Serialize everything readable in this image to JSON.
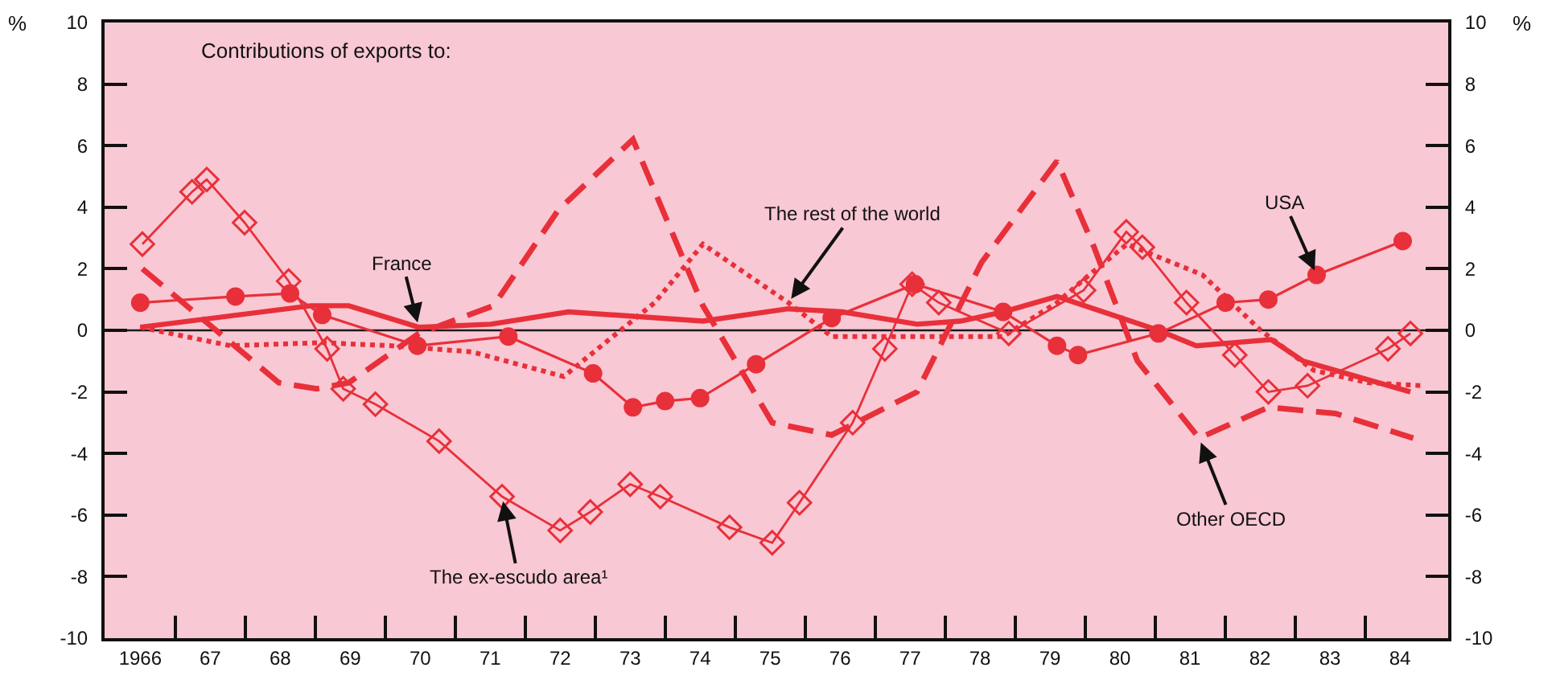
{
  "chart_data": {
    "type": "line",
    "annotations": [
      "Contributions of exports to:"
    ],
    "ylabel": "%",
    "y2label": "%",
    "xlim": [
      1965.49,
      1984.69
    ],
    "ylim": [
      -10,
      10
    ],
    "y2lim": [
      -10,
      10
    ],
    "xticks": [
      {
        "value": 1966,
        "label": "1966"
      },
      {
        "value": 1967,
        "label": "67"
      },
      {
        "value": 1968,
        "label": "68"
      },
      {
        "value": 1969,
        "label": "69"
      },
      {
        "value": 1970,
        "label": "70"
      },
      {
        "value": 1971,
        "label": "71"
      },
      {
        "value": 1972,
        "label": "72"
      },
      {
        "value": 1973,
        "label": "73"
      },
      {
        "value": 1974,
        "label": "74"
      },
      {
        "value": 1975,
        "label": "75"
      },
      {
        "value": 1976,
        "label": "76"
      },
      {
        "value": 1977,
        "label": "77"
      },
      {
        "value": 1978,
        "label": "78"
      },
      {
        "value": 1979,
        "label": "79"
      },
      {
        "value": 1980,
        "label": "80"
      },
      {
        "value": 1981,
        "label": "81"
      },
      {
        "value": 1982,
        "label": "82"
      },
      {
        "value": 1983,
        "label": "83"
      },
      {
        "value": 1984,
        "label": "84"
      },
      {
        "value": 1966.5,
        "label": null
      },
      {
        "value": 1967.5,
        "label": null
      },
      {
        "value": 1968.5,
        "label": null
      },
      {
        "value": 1969.5,
        "label": null
      },
      {
        "value": 1970.5,
        "label": null
      },
      {
        "value": 1971.5,
        "label": null
      },
      {
        "value": 1972.5,
        "label": null
      },
      {
        "value": 1973.5,
        "label": null
      },
      {
        "value": 1974.5,
        "label": null
      },
      {
        "value": 1975.5,
        "label": null
      },
      {
        "value": 1976.5,
        "label": null
      },
      {
        "value": 1977.5,
        "label": null
      },
      {
        "value": 1978.5,
        "label": null
      },
      {
        "value": 1979.5,
        "label": null
      },
      {
        "value": 1980.5,
        "label": null
      },
      {
        "value": 1981.5,
        "label": null
      },
      {
        "value": 1982.5,
        "label": null
      },
      {
        "value": 1983.5,
        "label": null
      }
    ],
    "yticks": [
      -10,
      -8,
      -6,
      -4,
      -2,
      0,
      2,
      4,
      6,
      8,
      10
    ],
    "y2ticks": [
      -10,
      -8,
      -6,
      -4,
      -2,
      0,
      2,
      4,
      6,
      8,
      10
    ],
    "grid": false,
    "legend": false,
    "ref_lines": [
      {
        "axis": "y",
        "value": 0,
        "color": "#1a1a1a"
      }
    ],
    "series": [
      {
        "name": "The ex-escudo area¹",
        "color": "#e8303a",
        "marker": "diamond",
        "line_style": "solid",
        "x": [
          1966.03,
          1966.74,
          1966.95,
          1967.49,
          1968.12,
          1968.67,
          1968.9,
          1969.36,
          1970.27,
          1971.17,
          1972.0,
          1972.43,
          1973.0,
          1973.43,
          1974.42,
          1975.03,
          1975.42,
          1976.18,
          1976.64,
          1977.03,
          1977.41,
          1978.41,
          1979.48,
          1980.09,
          1980.32,
          1980.95,
          1981.64,
          1982.12,
          1982.68,
          1983.83,
          1984.15
        ],
        "values": [
          2.8,
          4.5,
          4.9,
          3.5,
          1.6,
          -0.6,
          -1.9,
          -2.4,
          -3.6,
          -5.4,
          -6.5,
          -5.9,
          -5.0,
          -5.4,
          -6.4,
          -6.9,
          -5.6,
          -3.0,
          -0.6,
          1.5,
          0.9,
          -0.1,
          1.3,
          3.2,
          2.7,
          0.9,
          -0.8,
          -2.0,
          -1.8,
          -0.6,
          -0.1
        ]
      },
      {
        "name": "USA",
        "color": "#e8303a",
        "marker": "circle",
        "line_style": "solid",
        "x": [
          1966.0,
          1967.36,
          1968.14,
          1968.6,
          1969.96,
          1971.26,
          1972.47,
          1973.04,
          1973.5,
          1974.0,
          1974.8,
          1975.88,
          1977.07,
          1978.33,
          1979.1,
          1979.4,
          1980.55,
          1981.51,
          1982.12,
          1982.81,
          1984.04
        ],
        "values": [
          0.9,
          1.1,
          1.2,
          0.5,
          -0.5,
          -0.2,
          -1.4,
          -2.5,
          -2.3,
          -2.2,
          -1.1,
          0.4,
          1.5,
          0.6,
          -0.5,
          -0.8,
          -0.1,
          0.9,
          1.0,
          1.8,
          2.9
        ]
      },
      {
        "name": "France",
        "color": "#e8303a",
        "marker": "none",
        "line_style": "solid",
        "x": [
          1966.0,
          1968.44,
          1968.98,
          1969.98,
          1971.01,
          1972.12,
          1974.04,
          1975.26,
          1976.03,
          1977.1,
          1977.72,
          1978.33,
          1979.1,
          1980.55,
          1981.09,
          1982.16,
          1982.62,
          1984.15
        ],
        "values": [
          0.1,
          0.8,
          0.8,
          0.1,
          0.2,
          0.6,
          0.3,
          0.7,
          0.6,
          0.2,
          0.3,
          0.6,
          1.1,
          0.0,
          -0.5,
          -0.3,
          -1.0,
          -2.0
        ]
      },
      {
        "name": "The rest of the world",
        "color": "#e8303a",
        "marker": "none",
        "line_style": "dotted",
        "x": [
          1966.0,
          1967.29,
          1968.6,
          1969.59,
          1970.74,
          1972.05,
          1973.35,
          1974.04,
          1975.26,
          1975.88,
          1978.33,
          1979.1,
          1979.56,
          1980.1,
          1981.18,
          1982.01,
          1982.77,
          1983.54,
          1984.34
        ],
        "values": [
          0.1,
          -0.5,
          -0.4,
          -0.5,
          -0.7,
          -1.5,
          0.9,
          2.8,
          0.9,
          -0.2,
          -0.2,
          0.9,
          1.8,
          2.8,
          1.8,
          0.0,
          -1.3,
          -1.7,
          -1.8
        ]
      },
      {
        "name": "Other OECD",
        "color": "#e8303a",
        "marker": "none",
        "line_style": "dashed",
        "x": [
          1966.03,
          1967.98,
          1968.52,
          1968.98,
          1969.98,
          1971.05,
          1971.97,
          1973.04,
          1974.04,
          1975.03,
          1975.88,
          1977.1,
          1978.02,
          1979.1,
          1979.63,
          1980.25,
          1981.13,
          1982.12,
          1983.08,
          1984.19
        ],
        "values": [
          2.0,
          -1.7,
          -1.9,
          -1.7,
          -0.1,
          0.8,
          3.9,
          6.2,
          0.8,
          -3.0,
          -3.4,
          -2.0,
          2.2,
          5.5,
          2.7,
          -1.0,
          -3.5,
          -2.5,
          -2.7,
          -3.5
        ]
      }
    ]
  }
}
